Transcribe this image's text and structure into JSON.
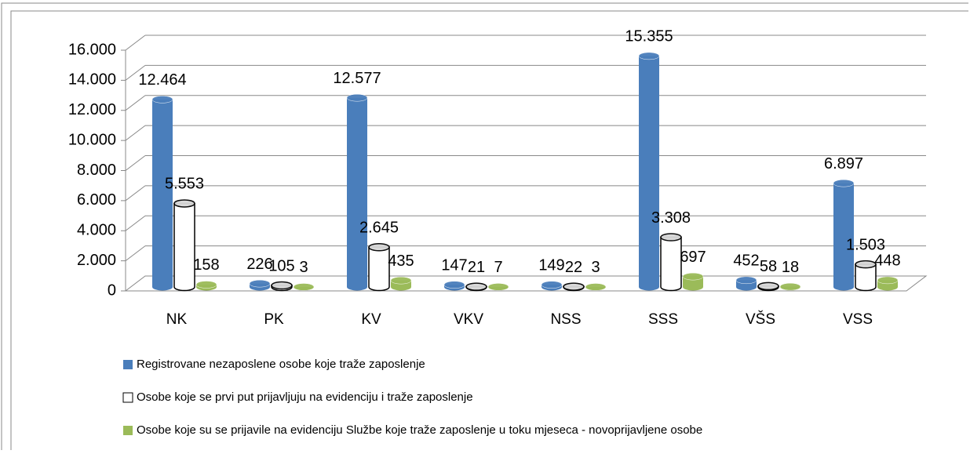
{
  "chart_data": {
    "type": "bar3d",
    "categories": [
      "NK",
      "PK",
      "KV",
      "VKV",
      "NSS",
      "SSS",
      "VŠS",
      "VSS"
    ],
    "series": [
      {
        "name": "Registrovane nezaposlene osobe koje traže zaposlenje",
        "color": "#4a7ebb",
        "values": [
          12464,
          226,
          12577,
          147,
          149,
          15355,
          452,
          6897
        ],
        "value_labels": [
          "12.464",
          "226",
          "12.577",
          "147",
          "149",
          "15.355",
          "452",
          "6.897"
        ]
      },
      {
        "name": "Osobe koje se prvi put prijavljuju na evidenciju i traže zaposlenje",
        "color": "#ffffff",
        "values": [
          5553,
          105,
          2645,
          21,
          22,
          3308,
          58,
          1503
        ],
        "value_labels": [
          "5.553",
          "105",
          "2.645",
          "21",
          "22",
          "3.308",
          "58",
          "1.503"
        ]
      },
      {
        "name": "Osobe koje su se prijavile na evidenciju Službe koje traže zaposlenje u toku mjeseca - novoprijavljene osobe",
        "color": "#9bbb59",
        "values": [
          158,
          3,
          435,
          7,
          3,
          697,
          18,
          448
        ],
        "value_labels": [
          "158",
          "3",
          "435",
          "7",
          "3",
          "697",
          "18",
          "448"
        ]
      }
    ],
    "ylim": [
      0,
      16000
    ],
    "yticks": [
      0,
      {
        "value": 2000,
        "label": "2.000"
      },
      {
        "value": 4000,
        "label": "4.000"
      },
      {
        "value": 6000,
        "label": "6.000"
      },
      {
        "value": 8000,
        "label": "8.000"
      },
      {
        "value": 10000,
        "label": "10.000"
      },
      {
        "value": 12000,
        "label": "12.000"
      },
      {
        "value": 14000,
        "label": "14.000"
      },
      {
        "value": 16000,
        "label": "16.000"
      }
    ],
    "grid": true
  }
}
